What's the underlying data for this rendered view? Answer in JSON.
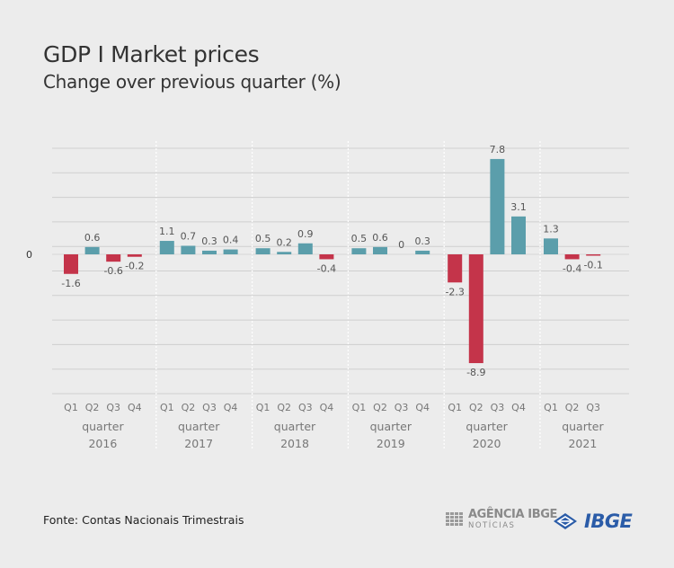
{
  "title": "GDP I Market prices",
  "subtitle": "Change over previous quarter (%)",
  "source": "Fonte: Contas Nacionais Trimestrais",
  "logos": {
    "agencia_line1": "AGÊNCIA IBGE",
    "agencia_line2": "NOTÍCIAS",
    "ibge": "IBGE"
  },
  "colors": {
    "positive": "#5b9eab",
    "negative": "#c4344a",
    "grid": "#cfcfcf",
    "label": "#555555",
    "axis_label": "#777777"
  },
  "chart_data": {
    "type": "bar",
    "title": "GDP I Market prices",
    "subtitle": "Change over previous quarter (%)",
    "xlabel": "",
    "ylabel": "",
    "ylim": [
      -11,
      10
    ],
    "zero_label": "0",
    "grid": true,
    "groups": [
      {
        "line1": "quarter",
        "line2": "2016",
        "quarters": [
          "Q1",
          "Q2",
          "Q3",
          "Q4"
        ],
        "values": [
          -1.6,
          0.6,
          -0.6,
          -0.2
        ],
        "labels": [
          "-1.6",
          "0.6",
          "-0.6",
          "-0.2"
        ]
      },
      {
        "line1": "quarter",
        "line2": "2017",
        "quarters": [
          "Q1",
          "Q2",
          "Q3",
          "Q4"
        ],
        "values": [
          1.1,
          0.7,
          0.3,
          0.4
        ],
        "labels": [
          "1.1",
          "0.7",
          "0.3",
          "0.4"
        ]
      },
      {
        "line1": "quarter",
        "line2": "2018",
        "quarters": [
          "Q1",
          "Q2",
          "Q3",
          "Q4"
        ],
        "values": [
          0.5,
          0.2,
          0.9,
          -0.4
        ],
        "labels": [
          "0.5",
          "0.2",
          "0.9",
          "-0.4"
        ]
      },
      {
        "line1": "quarter",
        "line2": "2019",
        "quarters": [
          "Q1",
          "Q2",
          "Q3",
          "Q4"
        ],
        "values": [
          0.5,
          0.6,
          0,
          0.3
        ],
        "labels": [
          "0.5",
          "0.6",
          "0",
          "0.3"
        ]
      },
      {
        "line1": "quarter",
        "line2": "2020",
        "quarters": [
          "Q1",
          "Q2",
          "Q3",
          "Q4"
        ],
        "values": [
          -2.3,
          -8.9,
          7.8,
          3.1
        ],
        "labels": [
          "-2.3",
          "-8.9",
          "7.8",
          "3.1"
        ]
      },
      {
        "line1": "quarter",
        "line2": "2021",
        "quarters": [
          "Q1",
          "Q2",
          "Q3"
        ],
        "values": [
          1.3,
          -0.4,
          -0.1
        ],
        "labels": [
          "1.3",
          "-0.4",
          "-0.1"
        ]
      }
    ]
  }
}
